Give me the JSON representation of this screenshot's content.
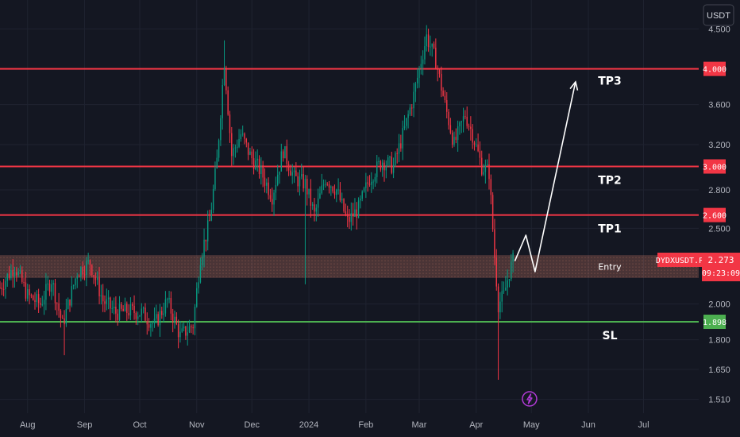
{
  "quote_currency_button": "USDT",
  "symbol_tag": "DYDXUSDT.P",
  "current_price": "2.273",
  "countdown": "09:23:09",
  "colors": {
    "background": "#141722",
    "grid": "#1f2330",
    "up": "#089981",
    "down": "#f23645",
    "level_red": "#f23645",
    "level_green": "#4caf50",
    "entry_zone": "#d9806a",
    "projection": "#ffffff",
    "event_icon": "#b13ad6"
  },
  "chart_data": {
    "type": "candlestick",
    "scale": "log",
    "grid": true,
    "ylim": [
      1.45,
      4.9
    ],
    "y_ticks": [
      "4.500",
      "3.600",
      "3.200",
      "2.800",
      "2.500",
      "2.000",
      "1.800",
      "1.650",
      "1.510"
    ],
    "x_ticks": [
      "Aug",
      "Sep",
      "Oct",
      "Nov",
      "Dec",
      "2024",
      "Feb",
      "Mar",
      "Apr",
      "May",
      "Jun",
      "Jul"
    ],
    "x_tick_dates": [
      "2023-08-01",
      "2023-09-01",
      "2023-10-01",
      "2023-11-01",
      "2023-12-01",
      "2024-01-01",
      "2024-02-01",
      "2024-03-01",
      "2024-04-01",
      "2024-05-01",
      "2024-06-01",
      "2024-07-01"
    ],
    "xlim": [
      "2023-07-17",
      "2024-07-31"
    ],
    "levels": [
      {
        "label": "TP3",
        "price": 4.0,
        "price_label": "4.000",
        "color": "red"
      },
      {
        "label": "TP2",
        "price": 3.0,
        "price_label": "3.000",
        "color": "red"
      },
      {
        "label": "TP1",
        "price": 2.6,
        "price_label": "2.600",
        "color": "red"
      },
      {
        "label": "SL",
        "price": 1.898,
        "price_label": "1.898",
        "color": "green"
      }
    ],
    "entry_zone": {
      "label": "Entry",
      "from": 2.16,
      "to": 2.31
    },
    "close_points": [
      [
        "2023-07-17",
        2.1
      ],
      [
        "2023-07-25",
        2.24
      ],
      [
        "2023-08-01",
        2.05
      ],
      [
        "2023-08-08",
        2.0
      ],
      [
        "2023-08-14",
        2.15
      ],
      [
        "2023-08-20",
        1.88
      ],
      [
        "2023-08-28",
        2.2
      ],
      [
        "2023-09-04",
        2.26
      ],
      [
        "2023-09-11",
        2.02
      ],
      [
        "2023-09-18",
        1.95
      ],
      [
        "2023-09-25",
        1.96
      ],
      [
        "2023-10-02",
        1.95
      ],
      [
        "2023-10-09",
        1.88
      ],
      [
        "2023-10-16",
        2.02
      ],
      [
        "2023-10-23",
        1.82
      ],
      [
        "2023-10-30",
        1.88
      ],
      [
        "2023-11-03",
        2.3
      ],
      [
        "2023-11-08",
        2.55
      ],
      [
        "2023-11-12",
        3.05
      ],
      [
        "2023-11-16",
        4.1
      ],
      [
        "2023-11-20",
        3.1
      ],
      [
        "2023-11-25",
        3.3
      ],
      [
        "2023-11-30",
        3.1
      ],
      [
        "2023-12-06",
        2.95
      ],
      [
        "2023-12-12",
        2.75
      ],
      [
        "2023-12-18",
        3.15
      ],
      [
        "2023-12-24",
        2.9
      ],
      [
        "2023-12-30",
        2.85
      ],
      [
        "2024-01-04",
        2.6
      ],
      [
        "2024-01-10",
        2.9
      ],
      [
        "2024-01-16",
        2.8
      ],
      [
        "2024-01-22",
        2.55
      ],
      [
        "2024-01-28",
        2.65
      ],
      [
        "2024-02-03",
        2.9
      ],
      [
        "2024-02-10",
        3.05
      ],
      [
        "2024-02-16",
        3.0
      ],
      [
        "2024-02-22",
        3.35
      ],
      [
        "2024-02-27",
        3.7
      ],
      [
        "2024-03-02",
        4.1
      ],
      [
        "2024-03-05",
        4.4
      ],
      [
        "2024-03-10",
        4.1
      ],
      [
        "2024-03-15",
        3.6
      ],
      [
        "2024-03-20",
        3.2
      ],
      [
        "2024-03-26",
        3.5
      ],
      [
        "2024-03-30",
        3.3
      ],
      [
        "2024-04-04",
        3.0
      ],
      [
        "2024-04-08",
        2.95
      ],
      [
        "2024-04-11",
        2.3
      ],
      [
        "2024-04-13",
        2.0
      ],
      [
        "2024-04-16",
        2.05
      ],
      [
        "2024-04-19",
        2.2
      ],
      [
        "2024-04-21",
        2.273
      ]
    ],
    "projection": [
      [
        "2024-04-22",
        2.27
      ],
      [
        "2024-04-28",
        2.45
      ],
      [
        "2024-05-03",
        2.2
      ],
      [
        "2024-05-25",
        3.85
      ]
    ],
    "event_marker": {
      "date": "2024-04-30",
      "icon": "lightning-icon"
    }
  }
}
